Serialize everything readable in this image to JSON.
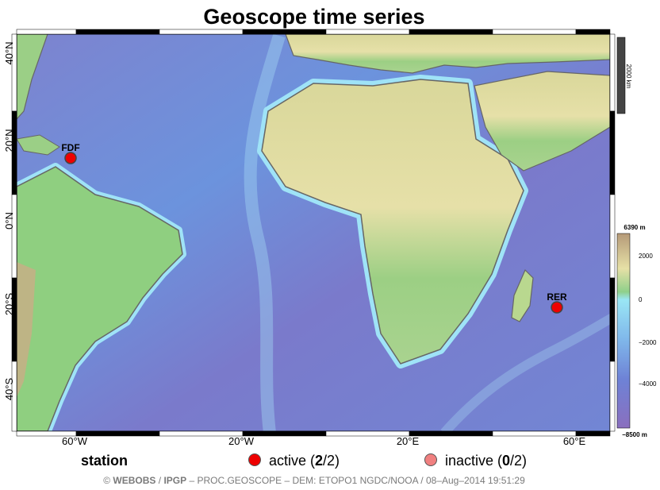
{
  "title": "Geoscope time series",
  "axes": {
    "x_ticks": [
      "60°W",
      "20°W",
      "20°E",
      "60°E"
    ],
    "y_ticks": [
      "40°N",
      "20°N",
      "0°N",
      "20°S",
      "40°S"
    ]
  },
  "scale_bar": {
    "label": "2000 km"
  },
  "colorbar": {
    "max_label": "6390 m",
    "min_label": "−8500 m",
    "ticks": [
      "2000",
      "0",
      "−2000",
      "−4000"
    ]
  },
  "stations": [
    {
      "code": "FDF",
      "status": "active",
      "lon": -61.1,
      "lat": 14.7
    },
    {
      "code": "RER",
      "status": "active",
      "lon": 55.6,
      "lat": -21.2
    }
  ],
  "legend": {
    "title": "station",
    "active_label": "active (",
    "active_count": "2",
    "active_total": "/2)",
    "inactive_label": "inactive (",
    "inactive_count": "0",
    "inactive_total": "/2)"
  },
  "credit": {
    "webobs": "WEBOBS",
    "sep1": " / ",
    "ipgp": "IPGP",
    "rest": " – PROC.GEOSCOPE – DEM: ETOPO1 NGDC/NOOA / 08–Aug–2014 19:51:29",
    "copyright": "© "
  },
  "colors": {
    "ocean_deep": "#7a6fc2",
    "ocean_mid": "#6f9ae0",
    "ocean_shallow": "#8fd6f0",
    "land_low": "#86c97e",
    "land_mid": "#e8e3a6",
    "land_high": "#c2a982",
    "station_active": "#ee0000",
    "station_inactive": "#f08080"
  }
}
